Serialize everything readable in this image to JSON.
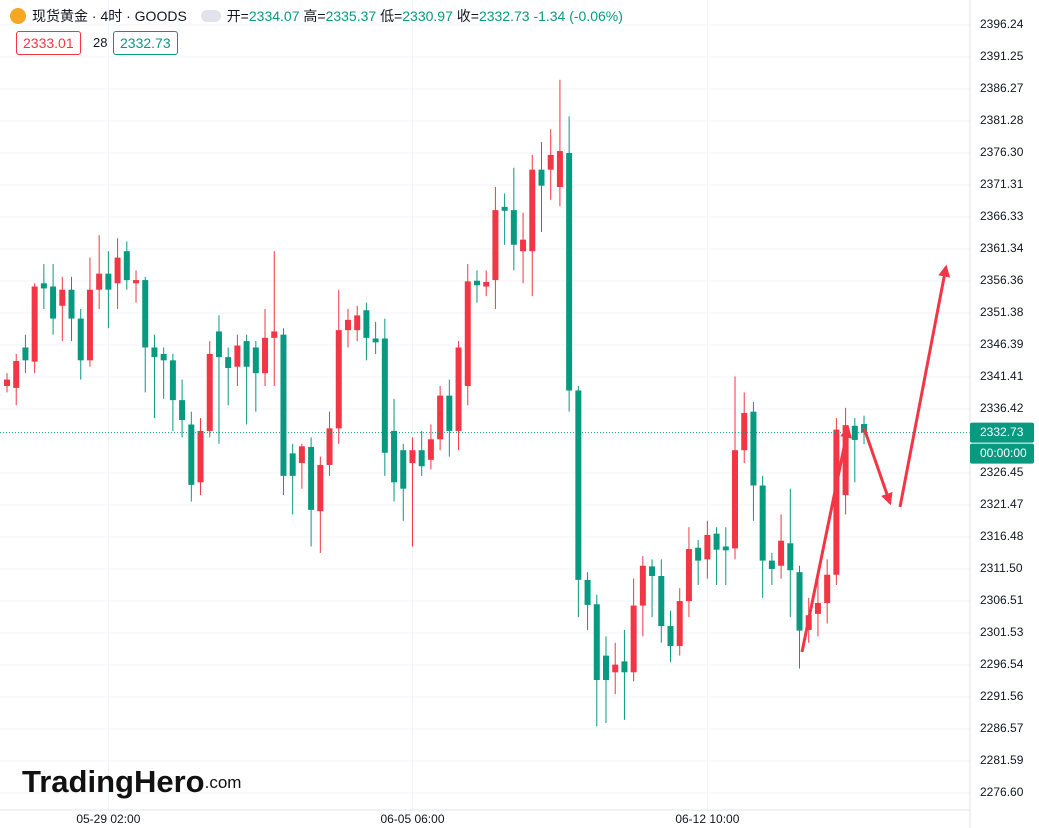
{
  "header": {
    "title": "现货黄金 · 4时 · GOODS",
    "ohlc_labels": [
      "开=",
      "高=",
      "低=",
      "收="
    ],
    "change_label": "-1.34 (-0.06%)"
  },
  "quote": {
    "sell": 2333.01,
    "spread": 28,
    "buy": 2332.73
  },
  "countdown": "00:00:00",
  "watermark": [
    "TradingHero",
    ".com"
  ],
  "chart_data": {
    "type": "candlestick",
    "up_color": "#f23645",
    "down_color": "#089981",
    "grid": true,
    "open": [
      2340,
      2339.7,
      2346,
      2343.8,
      2356,
      2355.5,
      2352.5,
      2355,
      2350.5,
      2344,
      2355,
      2357.5,
      2356,
      2361,
      2356,
      2356.5,
      2346,
      2345,
      2344,
      2337.8,
      2334,
      2325,
      2333,
      2348.5,
      2344.5,
      2343,
      2347,
      2346,
      2342,
      2347.5,
      2348,
      2329.5,
      2328,
      2330.5,
      2320.5,
      2327.7,
      2333.4,
      2348.7,
      2348.7,
      2351.8,
      2347.4,
      2347.4,
      2333,
      2330,
      2328,
      2330,
      2328.5,
      2331.7,
      2338.5,
      2333,
      2340,
      2356.4,
      2355.5,
      2356.5,
      2367.9,
      2367.4,
      2361,
      2361,
      2373.7,
      2373.7,
      2371,
      2376.3,
      2339.3,
      2309.8,
      2306,
      2298,
      2295.4,
      2297.1,
      2295.4,
      2305.8,
      2311.9,
      2310.4,
      2302.6,
      2299.5,
      2306.5,
      2314.8,
      2313,
      2317,
      2315,
      2314.7,
      2330,
      2336,
      2324.5,
      2312.8,
      2312,
      2315.5,
      2311,
      2302,
      2304.5,
      2306.2,
      2310.6,
      2323,
      2333.8,
      2334.07
    ],
    "high": [
      2342,
      2345,
      2348,
      2356,
      2359,
      2359,
      2357,
      2357,
      2352,
      2360,
      2363.5,
      2361,
      2363,
      2362.5,
      2358,
      2357,
      2348,
      2346,
      2345,
      2341,
      2336,
      2335,
      2347,
      2351,
      2346,
      2348,
      2348,
      2347,
      2352,
      2361,
      2349,
      2331,
      2331,
      2332,
      2329,
      2336,
      2355,
      2352,
      2352.5,
      2353,
      2350,
      2350.5,
      2338,
      2331,
      2332,
      2333,
      2334,
      2340,
      2341,
      2347,
      2359,
      2358,
      2358,
      2371,
      2370,
      2374,
      2367,
      2376,
      2378,
      2380,
      2387.7,
      2382,
      2340,
      2311,
      2307.5,
      2301,
      2300,
      2302,
      2310,
      2313.5,
      2313,
      2313,
      2305,
      2308.5,
      2318,
      2316,
      2319,
      2318,
      2318,
      2341.5,
      2339,
      2337.5,
      2326,
      2314,
      2320,
      2324,
      2312,
      2307,
      2310,
      2313,
      2335,
      2336.6,
      2335,
      2335.37
    ],
    "low": [
      2339,
      2337,
      2342,
      2342,
      2352,
      2348,
      2347,
      2347,
      2341,
      2343,
      2352,
      2349,
      2352,
      2355,
      2353,
      2339,
      2335,
      2338,
      2333,
      2332,
      2322,
      2323,
      2332,
      2331,
      2337,
      2340,
      2334,
      2336,
      2340,
      2340,
      2323,
      2320,
      2324,
      2315,
      2314,
      2326,
      2331,
      2346,
      2347,
      2344,
      2345,
      2326,
      2322,
      2319,
      2315,
      2326,
      2327,
      2330,
      2329,
      2330,
      2337,
      2353,
      2354,
      2352,
      2362,
      2358,
      2356,
      2354,
      2364,
      2369,
      2368,
      2336,
      2304,
      2302,
      2287,
      2287.5,
      2292,
      2288,
      2294,
      2301,
      2304,
      2300,
      2297,
      2298,
      2304,
      2309,
      2310,
      2309,
      2309,
      2313,
      2328,
      2319,
      2307,
      2309,
      2310,
      2304,
      2296,
      2300,
      2301,
      2303,
      2309,
      2320,
      2325,
      2330.97
    ],
    "close": [
      2341,
      2343.9,
      2344,
      2355.5,
      2355.2,
      2350.5,
      2355,
      2350.5,
      2344,
      2355,
      2357.5,
      2355,
      2360,
      2356.5,
      2356.5,
      2346,
      2344.5,
      2344,
      2337.8,
      2334.7,
      2324.6,
      2333,
      2345,
      2344.5,
      2342.8,
      2346.3,
      2343,
      2342,
      2347.5,
      2348.5,
      2326,
      2326,
      2330.6,
      2320.7,
      2327.7,
      2333.4,
      2348.7,
      2350.3,
      2351,
      2347.5,
      2346.8,
      2329.6,
      2325,
      2324,
      2330,
      2327.5,
      2331.7,
      2338.5,
      2333,
      2346,
      2356.3,
      2355.7,
      2356.2,
      2367.4,
      2367.3,
      2362,
      2362.8,
      2373.7,
      2371.2,
      2376,
      2376.6,
      2339.3,
      2309.8,
      2305.9,
      2294.2,
      2294.2,
      2296.6,
      2295.4,
      2305.8,
      2312,
      2310.4,
      2302.6,
      2299.5,
      2306.5,
      2314.6,
      2312.8,
      2316.8,
      2314.5,
      2314.4,
      2330,
      2335.8,
      2324.5,
      2312.8,
      2311.5,
      2315.9,
      2311.3,
      2301.9,
      2304.3,
      2306.2,
      2310.6,
      2333.2,
      2333.9,
      2331.6,
      2332.73
    ],
    "xlim": [
      -0.76,
      104.5
    ],
    "xticks": [
      {
        "value": 11,
        "label": "05-29 02:00"
      },
      {
        "value": 44,
        "label": "06-05 06:00"
      },
      {
        "value": 76,
        "label": "06-12 10:00"
      }
    ],
    "ylim": [
      2273.95,
      2400.13
    ],
    "yticks": [
      2396.24,
      2391.25,
      2386.27,
      2381.28,
      {
        "value": 2376.3,
        "label": "2376.30"
      },
      2371.31,
      2366.33,
      2361.34,
      2356.36,
      2351.38,
      2346.39,
      2341.41,
      2336.42,
      2326.45,
      2321.47,
      2316.48,
      {
        "value": 2311.5,
        "label": "2311.50"
      },
      2306.51,
      2301.53,
      2296.54,
      2291.56,
      2286.57,
      2281.59,
      {
        "value": 2276.6,
        "label": "2276.60"
      }
    ]
  }
}
